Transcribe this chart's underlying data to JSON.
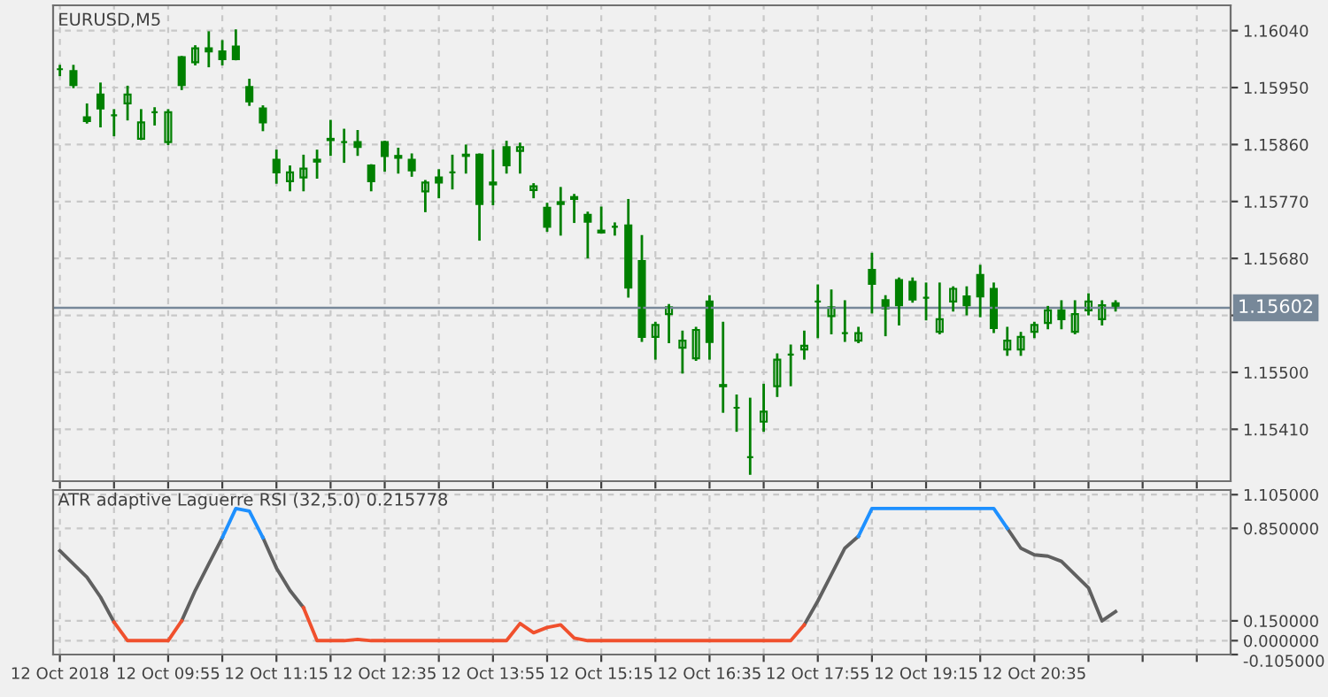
{
  "chart_data": [
    {
      "type": "candlestick",
      "title": "EURUSD,M5",
      "color": "#008000",
      "grid": true,
      "tick_labels": "y",
      "categories": [
        null,
        null,
        null,
        null,
        null,
        null,
        null,
        null,
        null,
        null,
        null,
        null,
        null,
        null,
        null,
        null,
        null,
        null,
        null,
        null,
        null,
        null,
        null,
        null,
        null,
        null,
        null,
        null,
        null,
        null,
        null,
        null,
        null,
        null,
        null,
        null,
        null,
        null,
        null,
        null,
        null,
        null,
        null,
        null,
        null,
        null,
        null,
        null,
        null,
        null,
        null,
        null,
        null,
        null,
        null,
        null,
        null,
        null,
        null,
        null,
        null,
        null,
        null,
        null,
        null,
        null,
        null,
        null,
        null,
        null,
        null,
        null,
        null,
        null,
        null,
        null,
        null,
        null,
        null,
        null,
        null,
        null,
        null,
        null,
        null,
        null,
        null
      ],
      "ohlc": [
        [
          1.15979,
          1.15984,
          1.1597,
          1.15979
        ],
        [
          1.15976,
          1.15984,
          1.15951,
          1.15954
        ],
        [
          1.15903,
          1.15923,
          1.15895,
          1.15897
        ],
        [
          1.15939,
          1.15956,
          1.15889,
          1.15917
        ],
        [
          1.15906,
          1.15914,
          1.15875,
          1.15906
        ],
        [
          1.15925,
          1.15951,
          1.159,
          1.15939
        ],
        [
          1.15869,
          1.15914,
          1.15869,
          1.15895
        ],
        [
          1.15911,
          1.15917,
          1.15892,
          1.15911
        ],
        [
          1.15864,
          1.15914,
          1.15861,
          1.15911
        ],
        [
          1.15998,
          1.15998,
          1.15948,
          1.15954
        ],
        [
          1.1599,
          1.16015,
          1.15987,
          1.16012
        ],
        [
          1.16012,
          1.16037,
          1.15984,
          1.16007
        ],
        [
          1.16007,
          1.16023,
          1.15987,
          1.15995
        ],
        [
          1.16015,
          1.1604,
          1.15995,
          1.15995
        ],
        [
          1.15951,
          1.15962,
          1.15923,
          1.15928
        ],
        [
          1.15917,
          1.1592,
          1.15883,
          1.15895
        ],
        [
          1.15836,
          1.1585,
          1.158,
          1.15816
        ],
        [
          1.15802,
          1.15825,
          1.15788,
          1.15816
        ],
        [
          1.15808,
          1.15842,
          1.15788,
          1.15822
        ],
        [
          1.15836,
          1.1585,
          1.15808,
          1.15833
        ],
        [
          1.15869,
          1.15897,
          1.15844,
          1.15867
        ],
        [
          1.15864,
          1.15883,
          1.15833,
          1.15864
        ],
        [
          1.15864,
          1.15881,
          1.15844,
          1.15856
        ],
        [
          1.15827,
          1.15827,
          1.15788,
          1.15802
        ],
        [
          1.15864,
          1.15864,
          1.15819,
          1.15842
        ],
        [
          1.15842,
          1.15853,
          1.15816,
          1.15839
        ],
        [
          1.15836,
          1.15844,
          1.15811,
          1.15819
        ],
        [
          1.15786,
          1.15802,
          1.15755,
          1.158
        ],
        [
          1.15808,
          1.15819,
          1.15777,
          1.158
        ],
        [
          1.15816,
          1.15842,
          1.15791,
          1.15816
        ],
        [
          1.15844,
          1.15858,
          1.15816,
          1.15842
        ],
        [
          1.15844,
          1.15844,
          1.1571,
          1.15766
        ],
        [
          1.158,
          1.1585,
          1.15766,
          1.15797
        ],
        [
          1.15856,
          1.15864,
          1.15816,
          1.15827
        ],
        [
          1.1585,
          1.15861,
          1.15816,
          1.15856
        ],
        [
          1.15788,
          1.15797,
          1.15777,
          1.15794
        ],
        [
          1.1576,
          1.15766,
          1.15724,
          1.1573
        ],
        [
          1.15769,
          1.15791,
          1.15718,
          1.15766
        ],
        [
          1.15777,
          1.1578,
          1.15738,
          1.15774
        ],
        [
          1.15749,
          1.15752,
          1.15682,
          1.15738
        ],
        [
          1.15724,
          1.1576,
          1.15721,
          1.15721
        ],
        [
          1.1573,
          1.15735,
          1.15718,
          1.1573
        ],
        [
          1.15732,
          1.15772,
          1.1562,
          1.15634
        ],
        [
          1.15676,
          1.15715,
          1.1555,
          1.15556
        ],
        [
          1.15556,
          1.15578,
          1.15522,
          1.15575
        ],
        [
          1.15592,
          1.15606,
          1.15548,
          1.15603
        ],
        [
          1.15539,
          1.15564,
          1.155,
          1.1555
        ],
        [
          1.15522,
          1.1557,
          1.1552,
          1.15567
        ],
        [
          1.15612,
          1.1562,
          1.15522,
          1.15548
        ],
        [
          1.15478,
          1.15578,
          1.15438,
          1.1548
        ],
        [
          1.15444,
          1.15463,
          1.15408,
          1.15444
        ],
        [
          1.15366,
          1.15458,
          1.1534,
          1.15366
        ],
        [
          1.15422,
          1.1548,
          1.15408,
          1.15438
        ],
        [
          1.15478,
          1.15528,
          1.15463,
          1.1552
        ],
        [
          1.15528,
          1.15542,
          1.1548,
          1.15528
        ],
        [
          1.15536,
          1.15564,
          1.15522,
          1.15542
        ],
        [
          1.15612,
          1.15637,
          1.15556,
          1.15612
        ],
        [
          1.15589,
          1.15629,
          1.15562,
          1.15603
        ],
        [
          1.15562,
          1.15612,
          1.1555,
          1.15562
        ],
        [
          1.1555,
          1.1557,
          1.15548,
          1.15562
        ],
        [
          1.15662,
          1.15687,
          1.15595,
          1.1564
        ],
        [
          1.15614,
          1.1562,
          1.15559,
          1.15601
        ],
        [
          1.15646,
          1.15648,
          1.15576,
          1.15606
        ],
        [
          1.15643,
          1.15648,
          1.15612,
          1.15615
        ],
        [
          1.15618,
          1.1564,
          1.15584,
          1.15618
        ],
        [
          1.15564,
          1.1564,
          1.15562,
          1.15584
        ],
        [
          1.15612,
          1.15634,
          1.15598,
          1.15632
        ],
        [
          1.1562,
          1.15634,
          1.15592,
          1.15606
        ],
        [
          1.15654,
          1.15668,
          1.15589,
          1.1562
        ],
        [
          1.15632,
          1.1564,
          1.15564,
          1.1557
        ],
        [
          1.15536,
          1.1557,
          1.15528,
          1.1555
        ],
        [
          1.15536,
          1.15562,
          1.15528,
          1.15556
        ],
        [
          1.15564,
          1.15578,
          1.15556,
          1.15575
        ],
        [
          1.15578,
          1.15603,
          1.1557,
          1.15598
        ],
        [
          1.15598,
          1.15612,
          1.1557,
          1.15584
        ],
        [
          1.15564,
          1.15612,
          1.15562,
          1.15592
        ],
        [
          1.15598,
          1.15623,
          1.15592,
          1.15612
        ],
        [
          1.15584,
          1.15612,
          1.15576,
          1.15606
        ],
        [
          1.15609,
          1.15612,
          1.15598,
          1.15603
        ],
        null,
        null,
        null,
        null,
        null,
        null,
        null,
        null
      ],
      "ylim": [
        1.15328,
        1.1608
      ],
      "yticks": [
        {
          "value": 1.1541,
          "label": "1.15410"
        },
        {
          "value": 1.155,
          "label": "1.15500"
        },
        {
          "value": 1.1559,
          "label": null
        },
        {
          "value": 1.1568,
          "label": "1.15680"
        },
        {
          "value": 1.1577,
          "label": "1.15770"
        },
        {
          "value": 1.1586,
          "label": "1.15860"
        },
        {
          "value": 1.1595,
          "label": "1.15950"
        },
        {
          "value": 1.1604,
          "label": "1.16040"
        }
      ],
      "ref_lines": [
        {
          "axis": "y",
          "value": 1.15602,
          "label": "1.15602",
          "color": "#778899"
        }
      ]
    },
    {
      "type": "line",
      "title": "ATR adaptive Laguerre RSI (32,5.0) 0.215778",
      "grid": true,
      "line_style": "solid",
      "categories": [
        "12 Oct 2018",
        null,
        null,
        null,
        null,
        null,
        null,
        null,
        "12 Oct 09:55",
        null,
        null,
        null,
        null,
        null,
        null,
        null,
        "12 Oct 11:15",
        null,
        null,
        null,
        null,
        null,
        null,
        null,
        "12 Oct 12:35",
        null,
        null,
        null,
        null,
        null,
        null,
        null,
        "12 Oct 13:55",
        null,
        null,
        null,
        null,
        null,
        null,
        null,
        "12 Oct 15:15",
        null,
        null,
        null,
        null,
        null,
        null,
        null,
        "12 Oct 16:35",
        null,
        null,
        null,
        null,
        null,
        null,
        null,
        "12 Oct 17:55",
        null,
        null,
        null,
        null,
        null,
        null,
        null,
        "12 Oct 19:15",
        null,
        null,
        null,
        null,
        null,
        null,
        null,
        "12 Oct 20:35",
        null,
        null,
        null,
        null,
        null,
        null,
        null,
        null,
        null,
        null,
        null,
        null,
        null,
        null
      ],
      "series": [
        {
          "color": "#606060",
          "values": [
            0.68,
            0.58,
            0.48,
            0.33,
            0.14,
            null,
            null,
            null,
            null,
            0.15,
            0.38,
            0.58,
            0.78,
            null,
            null,
            0.78,
            0.55,
            0.38,
            0.25,
            null,
            null,
            null,
            null,
            null,
            null,
            null,
            null,
            null,
            null,
            null,
            null,
            null,
            null,
            null,
            null,
            null,
            null,
            null,
            null,
            null,
            null,
            null,
            null,
            null,
            null,
            null,
            null,
            null,
            null,
            null,
            null,
            null,
            null,
            null,
            null,
            0.12,
            0.3,
            0.5,
            0.7,
            0.79,
            null,
            null,
            null,
            null,
            null,
            null,
            null,
            null,
            null,
            null,
            0.85,
            0.7,
            0.65,
            0.64,
            0.6,
            0.5,
            0.4,
            0.15,
            0.22,
            null,
            null,
            null,
            null,
            null,
            null,
            null,
            null
          ]
        },
        {
          "color": "#f0502d",
          "values": [
            null,
            null,
            null,
            null,
            0.14,
            0,
            0,
            0,
            0,
            0.15,
            null,
            null,
            null,
            null,
            null,
            null,
            null,
            null,
            0.25,
            0,
            0,
            0,
            0.01,
            0,
            0,
            0,
            0,
            0,
            0,
            0,
            0,
            0,
            0,
            0,
            0.13,
            0.06,
            0.1,
            0.12,
            0.02,
            0,
            0,
            0,
            0,
            0,
            0,
            0,
            0,
            0,
            0,
            0,
            0,
            0,
            0,
            0,
            0,
            0.12,
            null,
            null,
            null,
            null,
            null,
            null,
            null,
            null,
            null,
            null,
            null,
            null,
            null,
            null,
            null,
            null,
            null,
            null,
            null,
            null,
            null,
            null,
            null,
            null,
            null,
            null,
            null,
            null,
            null,
            null,
            null
          ]
        },
        {
          "color": "#1e90ff",
          "values": [
            null,
            null,
            null,
            null,
            null,
            null,
            null,
            null,
            null,
            null,
            null,
            null,
            0.78,
            1.0,
            0.98,
            0.78,
            null,
            null,
            null,
            null,
            null,
            null,
            null,
            null,
            null,
            null,
            null,
            null,
            null,
            null,
            null,
            null,
            null,
            null,
            null,
            null,
            null,
            null,
            null,
            null,
            null,
            null,
            null,
            null,
            null,
            null,
            null,
            null,
            null,
            null,
            null,
            null,
            null,
            null,
            null,
            null,
            null,
            null,
            null,
            0.79,
            1.0,
            1.0,
            1.0,
            1.0,
            1.0,
            1.0,
            1.0,
            1.0,
            1.0,
            1.0,
            0.85,
            null,
            null,
            null,
            null,
            null,
            null,
            null,
            null,
            null,
            null,
            null,
            null,
            null,
            null,
            null,
            null
          ]
        }
      ],
      "ylim": [
        -0.105,
        1.14
      ],
      "yticks": [
        {
          "value": -0.105,
          "label": "-0.105000"
        },
        {
          "value": 0,
          "label": "0.000000"
        },
        {
          "value": 0.15,
          "label": "0.150000"
        },
        {
          "value": 0.85,
          "label": "0.850000"
        },
        {
          "value": 1.105,
          "label": "1.105000"
        }
      ]
    }
  ]
}
